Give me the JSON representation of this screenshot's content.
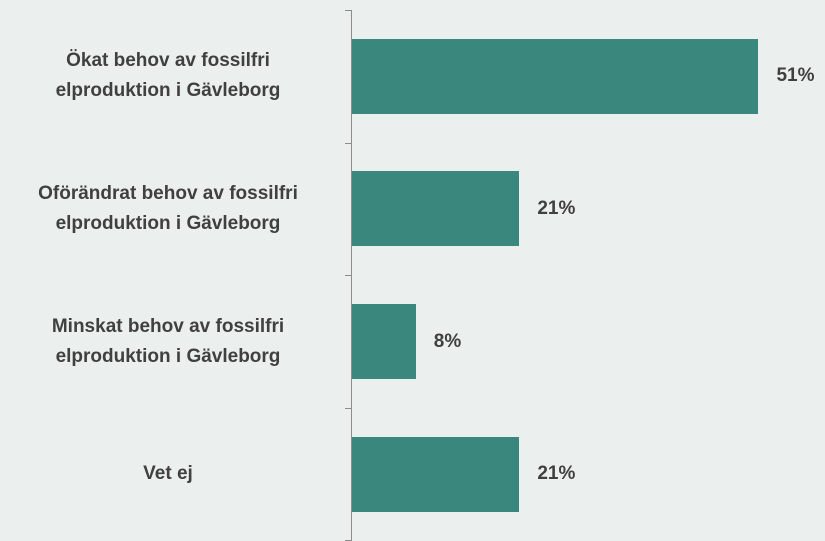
{
  "chart_data": {
    "type": "bar",
    "orientation": "horizontal",
    "categories": [
      "Ökat behov av fossilfri elproduktion i Gävleborg",
      "Oförändrat behov av fossilfri elproduktion i Gävleborg",
      "Minskat behov av fossilfri elproduktion i Gävleborg",
      "Vet ej"
    ],
    "values": [
      51,
      21,
      8,
      21
    ],
    "value_labels": [
      "51%",
      "21%",
      "8%",
      "21%"
    ],
    "color": "#3a877d"
  }
}
